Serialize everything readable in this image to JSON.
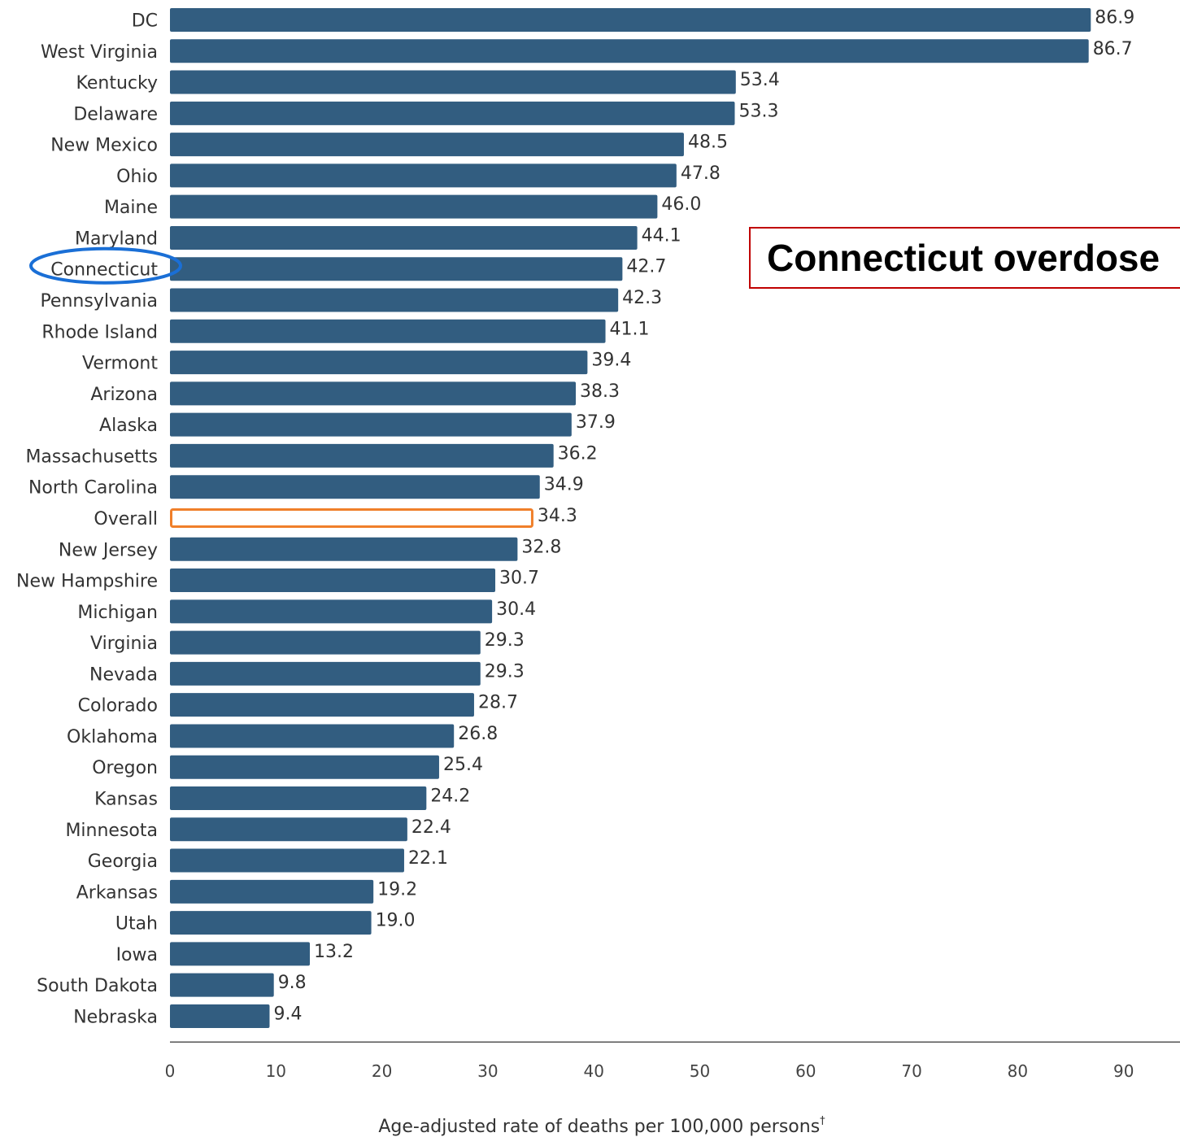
{
  "chart_data": {
    "type": "bar",
    "orientation": "horizontal",
    "categories": [
      "DC",
      "West Virginia",
      "Kentucky",
      "Delaware",
      "New Mexico",
      "Ohio",
      "Maine",
      "Maryland",
      "Connecticut",
      "Pennsylvania",
      "Rhode Island",
      "Vermont",
      "Arizona",
      "Alaska",
      "Massachusetts",
      "North Carolina",
      "Overall",
      "New Jersey",
      "New Hampshire",
      "Michigan",
      "Virginia",
      "Nevada",
      "Colorado",
      "Oklahoma",
      "Oregon",
      "Kansas",
      "Minnesota",
      "Georgia",
      "Arkansas",
      "Utah",
      "Iowa",
      "South Dakota",
      "Nebraska"
    ],
    "values": [
      86.9,
      86.7,
      53.4,
      53.3,
      48.5,
      47.8,
      46.0,
      44.1,
      42.7,
      42.3,
      41.1,
      39.4,
      38.3,
      37.9,
      36.2,
      34.9,
      34.3,
      32.8,
      30.7,
      30.4,
      29.3,
      29.3,
      28.7,
      26.8,
      25.4,
      24.2,
      22.4,
      22.1,
      19.2,
      19.0,
      13.2,
      9.8,
      9.4
    ],
    "value_labels": [
      "86.9",
      "86.7",
      "53.4",
      "53.3",
      "48.5",
      "47.8",
      "46.0",
      "44.1",
      "42.7",
      "42.3",
      "41.1",
      "39.4",
      "38.3",
      "37.9",
      "36.2",
      "34.9",
      "34.3",
      "32.8",
      "30.7",
      "30.4",
      "29.3",
      "29.3",
      "28.7",
      "26.8",
      "25.4",
      "24.2",
      "22.4",
      "22.1",
      "19.2",
      "19.0",
      "13.2",
      "9.8",
      "9.4"
    ],
    "xticks": [
      "0",
      "10",
      "20",
      "30",
      "40",
      "50",
      "60",
      "70",
      "80",
      "90"
    ],
    "xlim": [
      0,
      95
    ],
    "xlabel": "Age-adjusted rate of deaths per 100,000 persons",
    "xlabel_superscript": "†",
    "highlighted_category": "Overall",
    "circled_category": "Connecticut",
    "grid": false,
    "colors": {
      "bar": "#325d80",
      "overall_outline": "#f07f2a",
      "circle": "#1a6fd6",
      "annotation_border": "#c00000"
    }
  },
  "annotation": {
    "text": "Connecticut overdose"
  }
}
